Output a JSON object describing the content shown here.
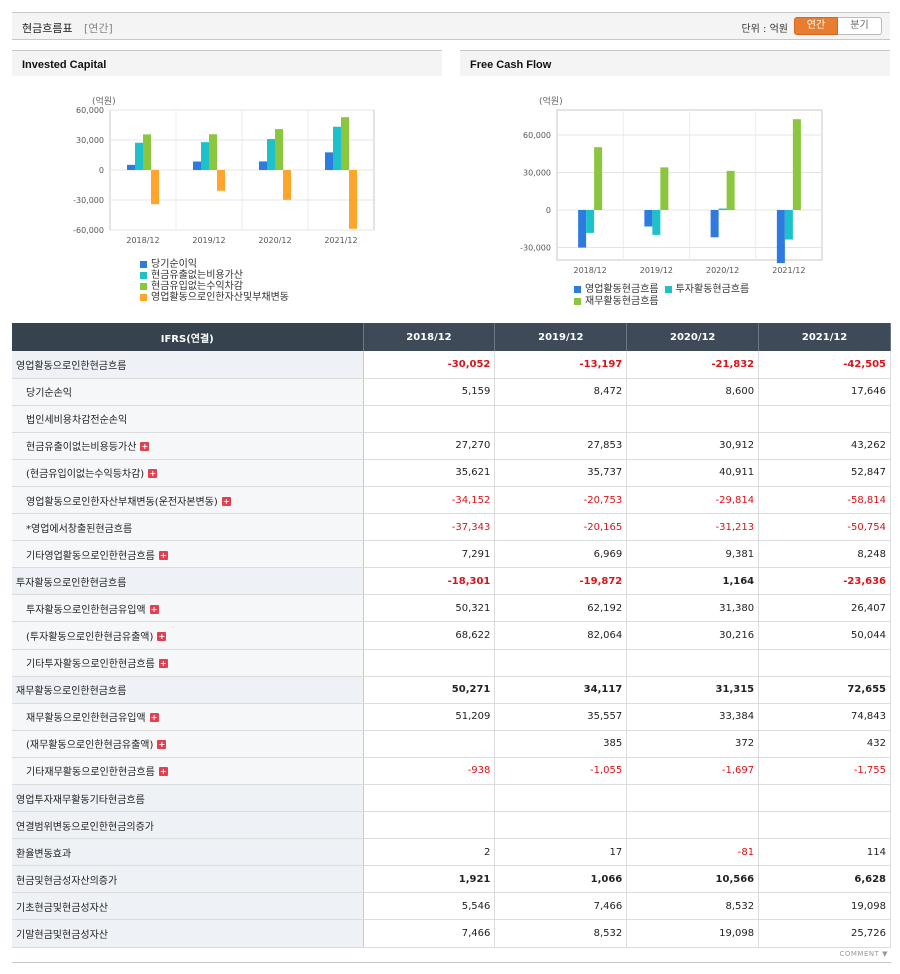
{
  "header": {
    "title": "현금흐름표",
    "period_tag": "[연간]",
    "unit_label": "단위 : 억원",
    "tab_annual": "연간",
    "tab_quarter": "분기"
  },
  "colors": {
    "blue": "#2e7be0",
    "cyan": "#1ec1c9",
    "green": "#8cc63e",
    "orange": "#ffa52c"
  },
  "chart_data": [
    {
      "type": "bar",
      "title": "Invested Capital",
      "unit": "(억원)",
      "categories": [
        "2018/12",
        "2019/12",
        "2020/12",
        "2021/12"
      ],
      "ylim": [
        -60000,
        60000
      ],
      "yticks": [
        "60,000",
        "30,000",
        "0",
        "-30,000",
        "-60,000"
      ],
      "series": [
        {
          "name": "당기순이익",
          "values": [
            5159,
            8472,
            8600,
            17646
          ]
        },
        {
          "name": "현금유출없는비용가산",
          "values": [
            27270,
            27853,
            30912,
            43262
          ]
        },
        {
          "name": "현금유입없는수익차감",
          "values": [
            35621,
            35737,
            40911,
            52847
          ]
        },
        {
          "name": "영업활동으로인한자산및부채변동",
          "values": [
            -34152,
            -20753,
            -29814,
            -58814
          ]
        }
      ]
    },
    {
      "type": "bar",
      "title": "Free Cash Flow",
      "unit": "(억원)",
      "categories": [
        "2018/12",
        "2019/12",
        "2020/12",
        "2021/12"
      ],
      "ylim": [
        -40000,
        80000
      ],
      "yticks": [
        "60,000",
        "30,000",
        "0",
        "-30,000"
      ],
      "series": [
        {
          "name": "영업활동현금흐름",
          "values": [
            -30052,
            -13197,
            -21832,
            -42505
          ]
        },
        {
          "name": "투자활동현금흐름",
          "values": [
            -18301,
            -19872,
            1164,
            -23636
          ]
        },
        {
          "name": "재무활동현금흐름",
          "values": [
            50271,
            34117,
            31315,
            72655
          ]
        }
      ]
    }
  ],
  "table": {
    "head": [
      "IFRS(연결)",
      "2018/12",
      "2019/12",
      "2020/12",
      "2021/12"
    ],
    "rows": [
      {
        "label": "영업활동으로인한현금흐름",
        "type": "main",
        "values": [
          "-30,052",
          "-13,197",
          "-21,832",
          "-42,505"
        ]
      },
      {
        "label": "당기순손익",
        "type": "sub",
        "values": [
          "5,159",
          "8,472",
          "8,600",
          "17,646"
        ]
      },
      {
        "label": "법인세비용차감전순손익",
        "type": "sub",
        "values": [
          "",
          "",
          "",
          ""
        ]
      },
      {
        "label": "현금유출이없는비용등가산",
        "type": "sub",
        "plus": true,
        "values": [
          "27,270",
          "27,853",
          "30,912",
          "43,262"
        ]
      },
      {
        "label": "(현금유입이없는수익등차감)",
        "type": "sub",
        "plus": true,
        "values": [
          "35,621",
          "35,737",
          "40,911",
          "52,847"
        ]
      },
      {
        "label": "영업활동으로인한자산부채변동(운전자본변동)",
        "type": "sub",
        "plus": true,
        "values": [
          "-34,152",
          "-20,753",
          "-29,814",
          "-58,814"
        ]
      },
      {
        "label": "*영업에서창출된현금흐름",
        "type": "sub",
        "values": [
          "-37,343",
          "-20,165",
          "-31,213",
          "-50,754"
        ]
      },
      {
        "label": "기타영업활동으로인한현금흐름",
        "type": "sub",
        "plus": true,
        "values": [
          "7,291",
          "6,969",
          "9,381",
          "8,248"
        ]
      },
      {
        "label": "투자활동으로인한현금흐름",
        "type": "main",
        "values": [
          "-18,301",
          "-19,872",
          "1,164",
          "-23,636"
        ]
      },
      {
        "label": "투자활동으로인한현금유입액",
        "type": "sub",
        "plus": true,
        "values": [
          "50,321",
          "62,192",
          "31,380",
          "26,407"
        ]
      },
      {
        "label": "(투자활동으로인한현금유출액)",
        "type": "sub",
        "plus": true,
        "values": [
          "68,622",
          "82,064",
          "30,216",
          "50,044"
        ]
      },
      {
        "label": "기타투자활동으로인한현금흐름",
        "type": "sub",
        "plus": true,
        "values": [
          "",
          "",
          "",
          ""
        ]
      },
      {
        "label": "재무활동으로인한현금흐름",
        "type": "main",
        "values": [
          "50,271",
          "34,117",
          "31,315",
          "72,655"
        ]
      },
      {
        "label": "재무활동으로인한현금유입액",
        "type": "sub",
        "plus": true,
        "values": [
          "51,209",
          "35,557",
          "33,384",
          "74,843"
        ]
      },
      {
        "label": "(재무활동으로인한현금유출액)",
        "type": "sub",
        "plus": true,
        "values": [
          "",
          "385",
          "372",
          "432"
        ]
      },
      {
        "label": "기타재무활동으로인한현금흐름",
        "type": "sub",
        "plus": true,
        "values": [
          "-938",
          "-1,055",
          "-1,697",
          "-1,755"
        ]
      },
      {
        "label": "영업투자재무활동기타현금흐름",
        "type": "plain",
        "values": [
          "",
          "",
          "",
          ""
        ]
      },
      {
        "label": "연결범위변동으로인한현금의증가",
        "type": "plain",
        "values": [
          "",
          "",
          "",
          ""
        ]
      },
      {
        "label": "환율변동효과",
        "type": "plain",
        "values": [
          "2",
          "17",
          "-81",
          "114"
        ]
      },
      {
        "label": "현금및현금성자산의증가",
        "type": "main",
        "values": [
          "1,921",
          "1,066",
          "10,566",
          "6,628"
        ]
      },
      {
        "label": "기초현금및현금성자산",
        "type": "plain",
        "values": [
          "5,546",
          "7,466",
          "8,532",
          "19,098"
        ]
      },
      {
        "label": "기말현금및현금성자산",
        "type": "plain",
        "values": [
          "7,466",
          "8,532",
          "19,098",
          "25,726"
        ]
      }
    ]
  },
  "footer": {
    "comment": "COMMENT ▼"
  }
}
